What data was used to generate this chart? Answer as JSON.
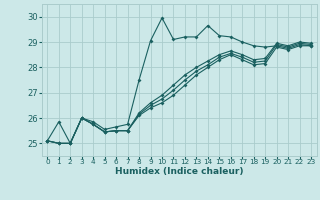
{
  "xlabel": "Humidex (Indice chaleur)",
  "xlim": [
    -0.5,
    23.5
  ],
  "ylim": [
    24.5,
    30.5
  ],
  "yticks": [
    25,
    26,
    27,
    28,
    29,
    30
  ],
  "xticks": [
    0,
    1,
    2,
    3,
    4,
    5,
    6,
    7,
    8,
    9,
    10,
    11,
    12,
    13,
    14,
    15,
    16,
    17,
    18,
    19,
    20,
    21,
    22,
    23
  ],
  "bg_color": "#cce8e8",
  "grid_color": "#aacccc",
  "line_color": "#1a6060",
  "lines": [
    [
      25.1,
      25.85,
      25.0,
      26.0,
      25.85,
      25.55,
      25.65,
      25.75,
      27.5,
      29.05,
      29.95,
      29.1,
      29.2,
      29.2,
      29.65,
      29.25,
      29.2,
      29.0,
      28.85,
      28.8,
      28.85,
      28.75,
      28.9,
      28.85
    ],
    [
      25.1,
      25.0,
      25.0,
      26.0,
      25.75,
      25.45,
      25.5,
      25.5,
      26.1,
      26.4,
      26.6,
      26.9,
      27.3,
      27.7,
      28.0,
      28.3,
      28.5,
      28.3,
      28.1,
      28.15,
      28.8,
      28.7,
      28.85,
      28.85
    ],
    [
      25.1,
      25.0,
      25.0,
      26.0,
      25.75,
      25.45,
      25.5,
      25.5,
      26.15,
      26.5,
      26.75,
      27.1,
      27.5,
      27.85,
      28.1,
      28.4,
      28.55,
      28.4,
      28.2,
      28.25,
      28.9,
      28.8,
      28.95,
      28.9
    ],
    [
      25.1,
      25.0,
      25.0,
      26.0,
      25.75,
      25.45,
      25.5,
      25.5,
      26.2,
      26.6,
      26.9,
      27.3,
      27.7,
      28.0,
      28.25,
      28.5,
      28.65,
      28.5,
      28.3,
      28.35,
      28.95,
      28.85,
      29.0,
      28.95
    ]
  ]
}
